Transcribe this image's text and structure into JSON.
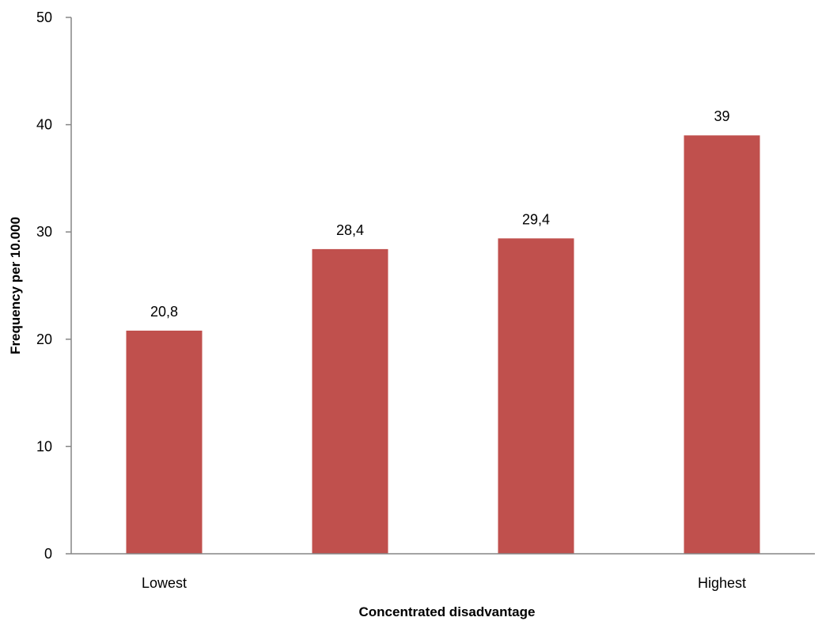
{
  "chart_data": {
    "type": "bar",
    "title": "",
    "xlabel": "Concentrated disadvantage",
    "ylabel": "Frequency per 10.000",
    "categories": [
      "Lowest",
      "",
      "",
      "Highest"
    ],
    "values": [
      20.8,
      28.4,
      29.4,
      39
    ],
    "data_labels": [
      "20,8",
      "28,4",
      "29,4",
      "39"
    ],
    "ylim": [
      0,
      50
    ],
    "yticks": [
      0,
      10,
      20,
      30,
      40,
      50
    ],
    "grid": false,
    "legend": "none",
    "bar_color": "#C0504D",
    "axis_color": "#868686"
  }
}
